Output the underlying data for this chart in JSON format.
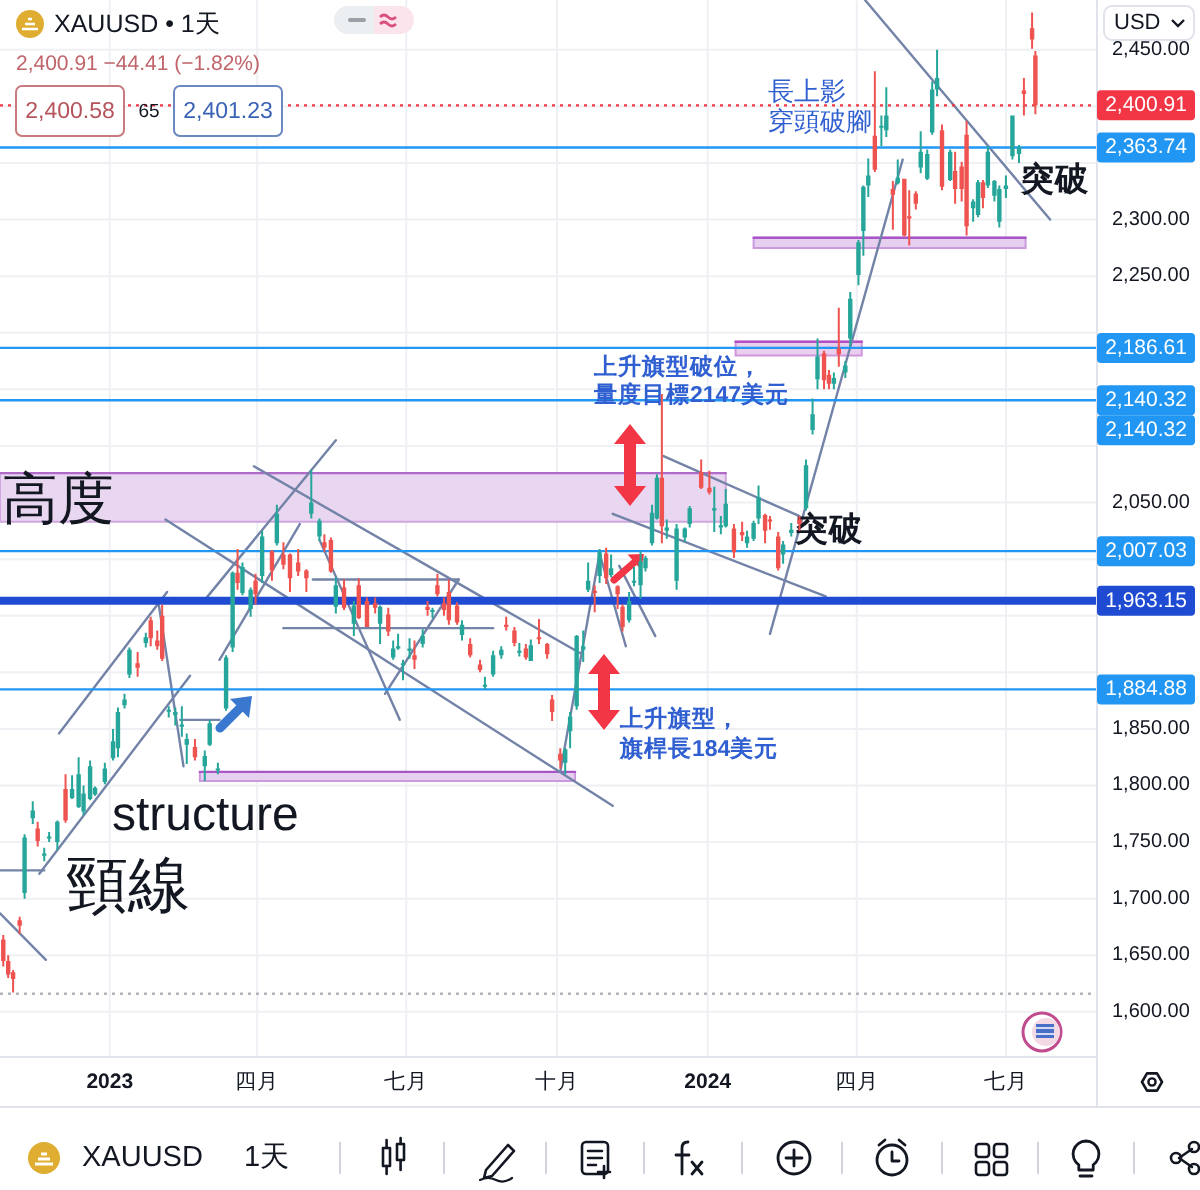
{
  "chart_data": {
    "type": "candlestick",
    "title": "XAUUSD • 1天",
    "subtitle": "2,400.91 −44.41 (−1.82%)",
    "x": [
      "2022-10-28",
      "2022-10-31",
      "2022-11-03",
      "2022-11-07",
      "2022-11-10",
      "2022-11-15",
      "2022-11-18",
      "2022-11-22",
      "2022-11-25",
      "2022-11-30",
      "2022-12-05",
      "2022-12-09",
      "2022-12-13",
      "2022-12-16",
      "2022-12-20",
      "2022-12-23",
      "2022-12-29",
      "2023-01-03",
      "2023-01-06",
      "2023-01-10",
      "2023-01-13",
      "2023-01-18",
      "2023-01-23",
      "2023-01-26",
      "2023-01-30",
      "2023-02-02",
      "2023-02-06",
      "2023-02-10",
      "2023-02-14",
      "2023-02-17",
      "2023-02-22",
      "2023-02-28",
      "2023-03-03",
      "2023-03-08",
      "2023-03-13",
      "2023-03-17",
      "2023-03-20",
      "2023-03-23",
      "2023-03-28",
      "2023-03-31",
      "2023-04-04",
      "2023-04-10",
      "2023-04-13",
      "2023-04-17",
      "2023-04-21",
      "2023-04-26",
      "2023-05-01",
      "2023-05-04",
      "2023-05-09",
      "2023-05-12",
      "2023-05-16",
      "2023-05-19",
      "2023-05-24",
      "2023-05-30",
      "2023-06-02",
      "2023-06-07",
      "2023-06-12",
      "2023-06-15",
      "2023-06-20",
      "2023-06-23",
      "2023-06-26",
      "2023-06-29",
      "2023-07-03",
      "2023-07-06",
      "2023-07-11",
      "2023-07-14",
      "2023-07-17",
      "2023-07-20",
      "2023-07-24",
      "2023-07-27",
      "2023-08-01",
      "2023-08-04",
      "2023-08-09",
      "2023-08-15",
      "2023-08-18",
      "2023-08-23",
      "2023-08-28",
      "2023-08-31",
      "2023-09-05",
      "2023-09-08",
      "2023-09-12",
      "2023-09-15",
      "2023-09-20",
      "2023-09-25",
      "2023-09-28",
      "2023-10-03",
      "2023-10-06",
      "2023-10-09",
      "2023-10-13",
      "2023-10-17",
      "2023-10-20",
      "2023-10-24",
      "2023-10-27",
      "2023-10-31",
      "2023-11-03",
      "2023-11-07",
      "2023-11-10",
      "2023-11-14",
      "2023-11-17",
      "2023-11-21",
      "2023-11-24",
      "2023-11-28",
      "2023-12-01",
      "2023-12-04",
      "2023-12-07",
      "2023-12-13",
      "2023-12-18",
      "2023-12-21",
      "2023-12-28",
      "2024-01-02",
      "2024-01-05",
      "2024-01-09",
      "2024-01-12",
      "2024-01-17",
      "2024-01-22",
      "2024-01-25",
      "2024-01-29",
      "2024-02-01",
      "2024-02-05",
      "2024-02-08",
      "2024-02-13",
      "2024-02-16",
      "2024-02-21",
      "2024-02-26",
      "2024-03-01",
      "2024-03-05",
      "2024-03-08",
      "2024-03-12",
      "2024-03-15",
      "2024-03-18",
      "2024-03-21",
      "2024-03-25",
      "2024-03-28",
      "2024-04-02",
      "2024-04-05",
      "2024-04-08",
      "2024-04-12",
      "2024-04-16",
      "2024-04-19",
      "2024-04-23",
      "2024-04-26",
      "2024-04-30",
      "2024-05-03",
      "2024-05-07",
      "2024-05-10",
      "2024-05-14",
      "2024-05-17",
      "2024-05-20",
      "2024-05-23",
      "2024-05-28",
      "2024-05-31",
      "2024-06-04",
      "2024-06-07",
      "2024-06-11",
      "2024-06-14",
      "2024-06-17",
      "2024-06-20",
      "2024-06-24",
      "2024-06-27",
      "2024-07-01",
      "2024-07-05",
      "2024-07-09",
      "2024-07-12",
      "2024-07-17",
      "2024-07-19"
    ],
    "ohlc": [
      [
        1664,
        1668,
        1640,
        1645
      ],
      [
        1645,
        1650,
        1630,
        1633
      ],
      [
        1635,
        1637,
        1617,
        1629
      ],
      [
        1681,
        1684,
        1669,
        1676
      ],
      [
        1705,
        1757,
        1700,
        1754
      ],
      [
        1771,
        1786,
        1766,
        1778
      ],
      [
        1762,
        1768,
        1746,
        1751
      ],
      [
        1738,
        1745,
        1733,
        1740
      ],
      [
        1755,
        1759,
        1750,
        1755
      ],
      [
        1750,
        1769,
        1743,
        1768
      ],
      [
        1797,
        1810,
        1767,
        1769
      ],
      [
        1789,
        1809,
        1788,
        1797
      ],
      [
        1781,
        1825,
        1780,
        1810
      ],
      [
        1777,
        1800,
        1774,
        1793
      ],
      [
        1788,
        1822,
        1787,
        1817
      ],
      [
        1792,
        1799,
        1791,
        1798
      ],
      [
        1803,
        1820,
        1801,
        1815
      ],
      [
        1824,
        1850,
        1822,
        1839
      ],
      [
        1833,
        1869,
        1825,
        1865
      ],
      [
        1871,
        1881,
        1868,
        1876
      ],
      [
        1898,
        1922,
        1895,
        1920
      ],
      [
        1908,
        1918,
        1896,
        1904
      ],
      [
        1926,
        1935,
        1922,
        1931
      ],
      [
        1946,
        1949,
        1923,
        1930
      ],
      [
        1928,
        1937,
        1920,
        1923
      ],
      [
        1950,
        1960,
        1910,
        1912
      ],
      [
        1866,
        1870,
        1860,
        1867
      ],
      [
        1862,
        1869,
        1853,
        1865
      ],
      [
        1852,
        1870,
        1843,
        1854
      ],
      [
        1836,
        1846,
        1819,
        1841
      ],
      [
        1834,
        1841,
        1822,
        1825
      ],
      [
        1817,
        1831,
        1804,
        1826
      ],
      [
        1836,
        1858,
        1835,
        1855
      ],
      [
        1814,
        1820,
        1810,
        1815
      ],
      [
        1868,
        1915,
        1866,
        1913
      ],
      [
        1922,
        1989,
        1918,
        1988
      ],
      [
        1988,
        2009,
        1973,
        1979
      ],
      [
        1970,
        1997,
        1968,
        1993
      ],
      [
        1956,
        1975,
        1949,
        1973
      ],
      [
        1981,
        1987,
        1960,
        1969
      ],
      [
        1985,
        2025,
        1979,
        2020
      ],
      [
        2007,
        2008,
        1981,
        1990
      ],
      [
        2014,
        2048,
        2012,
        2040
      ],
      [
        2004,
        2015,
        1991,
        1995
      ],
      [
        2004,
        2005,
        1971,
        1983
      ],
      [
        1997,
        2009,
        1985,
        1989
      ],
      [
        1990,
        1991,
        1971,
        1983
      ],
      [
        2040,
        2079,
        2036,
        2050
      ],
      [
        2020,
        2036,
        2016,
        2034
      ],
      [
        2015,
        2022,
        2006,
        2010
      ],
      [
        2017,
        2019,
        1988,
        1989
      ],
      [
        1958,
        1984,
        1952,
        1977
      ],
      [
        1975,
        1982,
        1955,
        1957
      ],
      [
        1943,
        1963,
        1932,
        1959
      ],
      [
        1977,
        1983,
        1947,
        1948
      ],
      [
        1963,
        1966,
        1940,
        1940
      ],
      [
        1961,
        1966,
        1952,
        1957
      ],
      [
        1943,
        1959,
        1925,
        1958
      ],
      [
        1951,
        1957,
        1932,
        1936
      ],
      [
        1913,
        1928,
        1911,
        1921
      ],
      [
        1921,
        1934,
        1920,
        1923
      ],
      [
        1907,
        1911,
        1893,
        1908
      ],
      [
        1919,
        1930,
        1912,
        1921
      ],
      [
        1915,
        1928,
        1903,
        1911
      ],
      [
        1925,
        1938,
        1922,
        1932
      ],
      [
        1958,
        1963,
        1950,
        1955
      ],
      [
        1955,
        1957,
        1948,
        1955
      ],
      [
        1977,
        1987,
        1967,
        1969
      ],
      [
        1961,
        1966,
        1950,
        1955
      ],
      [
        1971,
        1982,
        1942,
        1946
      ],
      [
        1959,
        1962,
        1942,
        1944
      ],
      [
        1933,
        1946,
        1928,
        1942
      ],
      [
        1925,
        1930,
        1913,
        1915
      ],
      [
        1907,
        1911,
        1900,
        1902
      ],
      [
        1889,
        1896,
        1885,
        1889
      ],
      [
        1898,
        1919,
        1896,
        1915
      ],
      [
        1915,
        1923,
        1912,
        1920
      ],
      [
        1942,
        1949,
        1937,
        1940
      ],
      [
        1937,
        1940,
        1923,
        1926
      ],
      [
        1919,
        1926,
        1914,
        1919
      ],
      [
        1921,
        1925,
        1911,
        1913
      ],
      [
        1910,
        1929,
        1910,
        1924
      ],
      [
        1931,
        1947,
        1925,
        1930
      ],
      [
        1925,
        1926,
        1912,
        1916
      ],
      [
        1876,
        1880,
        1857,
        1865
      ],
      [
        1828,
        1833,
        1815,
        1822
      ],
      [
        1820,
        1833,
        1810,
        1832
      ],
      [
        1848,
        1865,
        1833,
        1861
      ],
      [
        1870,
        1933,
        1867,
        1932
      ],
      [
        1920,
        1937,
        1909,
        1923
      ],
      [
        1973,
        1997,
        1971,
        1981
      ],
      [
        1972,
        1977,
        1953,
        1970
      ],
      [
        1985,
        2009,
        1979,
        2006
      ],
      [
        2005,
        2010,
        1978,
        1983
      ],
      [
        1986,
        2004,
        1984,
        1992
      ],
      [
        1976,
        1977,
        1956,
        1969
      ],
      [
        1958,
        1960,
        1936,
        1940
      ],
      [
        1946,
        1971,
        1944,
        1963
      ],
      [
        1981,
        1993,
        1976,
        1981
      ],
      [
        1977,
        2007,
        1965,
        1998
      ],
      [
        1992,
        2003,
        1989,
        2001
      ],
      [
        2014,
        2048,
        2012,
        2041
      ],
      [
        2036,
        2075,
        2035,
        2072
      ],
      [
        2072,
        2146,
        2014,
        2029
      ],
      [
        2025,
        2035,
        2018,
        2028
      ],
      [
        1981,
        2031,
        1973,
        2027
      ],
      [
        2019,
        2028,
        2015,
        2027
      ],
      [
        2031,
        2047,
        2028,
        2045
      ],
      [
        2077,
        2088,
        2062,
        2063
      ],
      [
        2063,
        2078,
        2057,
        2059
      ],
      [
        2043,
        2064,
        2024,
        2045
      ],
      [
        2028,
        2038,
        2022,
        2030
      ],
      [
        2029,
        2062,
        2028,
        2049
      ],
      [
        2027,
        2031,
        2001,
        2006
      ],
      [
        2024,
        2033,
        2016,
        2021
      ],
      [
        2014,
        2025,
        2010,
        2020
      ],
      [
        2018,
        2034,
        2016,
        2032
      ],
      [
        2036,
        2065,
        2031,
        2055
      ],
      [
        2039,
        2040,
        2014,
        2025
      ],
      [
        2035,
        2038,
        2026,
        2034
      ],
      [
        2020,
        2024,
        1990,
        1992
      ],
      [
        2004,
        2016,
        1996,
        2013
      ],
      [
        2023,
        2032,
        2020,
        2026
      ],
      [
        2035,
        2038,
        2025,
        2031
      ],
      [
        2045,
        2088,
        2043,
        2083
      ],
      [
        2114,
        2142,
        2110,
        2128
      ],
      [
        2159,
        2195,
        2150,
        2179
      ],
      [
        2182,
        2184,
        2150,
        2158
      ],
      [
        2163,
        2167,
        2150,
        2155
      ],
      [
        2155,
        2165,
        2150,
        2160
      ],
      [
        2186,
        2222,
        2170,
        2181
      ],
      [
        2165,
        2175,
        2160,
        2171
      ],
      [
        2195,
        2236,
        2188,
        2230
      ],
      [
        2251,
        2282,
        2242,
        2280
      ],
      [
        2290,
        2330,
        2268,
        2329
      ],
      [
        2330,
        2354,
        2320,
        2339
      ],
      [
        2374,
        2431,
        2342,
        2344
      ],
      [
        2383,
        2392,
        2365,
        2383
      ],
      [
        2379,
        2417,
        2373,
        2392
      ],
      [
        2327,
        2334,
        2291,
        2322
      ],
      [
        2332,
        2353,
        2331,
        2337
      ],
      [
        2336,
        2336,
        2285,
        2286
      ],
      [
        2303,
        2326,
        2277,
        2301
      ],
      [
        2323,
        2325,
        2309,
        2314
      ],
      [
        2346,
        2378,
        2341,
        2360
      ],
      [
        2336,
        2362,
        2335,
        2358
      ],
      [
        2377,
        2422,
        2375,
        2415
      ],
      [
        2415,
        2450,
        2409,
        2425
      ],
      [
        2379,
        2384,
        2326,
        2329
      ],
      [
        2335,
        2362,
        2334,
        2360
      ],
      [
        2343,
        2360,
        2314,
        2327
      ],
      [
        2347,
        2351,
        2316,
        2327
      ],
      [
        2375,
        2387,
        2286,
        2294
      ],
      [
        2310,
        2318,
        2298,
        2316
      ],
      [
        2304,
        2335,
        2302,
        2333
      ],
      [
        2333,
        2335,
        2310,
        2319
      ],
      [
        2330,
        2365,
        2328,
        2360
      ],
      [
        2321,
        2335,
        2316,
        2334
      ],
      [
        2298,
        2330,
        2293,
        2327
      ],
      [
        2327,
        2339,
        2319,
        2330
      ],
      [
        2356,
        2392,
        2353,
        2392
      ],
      [
        2358,
        2366,
        2350,
        2364
      ],
      [
        2414,
        2425,
        2392,
        2411
      ],
      [
        2469,
        2483,
        2451,
        2459
      ],
      [
        2445,
        2449,
        2393,
        2400.91
      ]
    ],
    "xlim": [
      "2022-10-26",
      "2024-08-25"
    ],
    "xticks": [
      {
        "value": "2023-01-01",
        "label": "2023"
      },
      {
        "value": "2023-04-01",
        "label": "四月"
      },
      {
        "value": "2023-07-01",
        "label": "七月"
      },
      {
        "value": "2023-10-01",
        "label": "十月"
      },
      {
        "value": "2024-01-01",
        "label": "2024"
      },
      {
        "value": "2024-04-01",
        "label": "四月"
      },
      {
        "value": "2024-07-01",
        "label": "七月"
      }
    ],
    "ylim": [
      1561,
      2494
    ],
    "yticks": [
      {
        "value": 1600,
        "label": "1,600.00"
      },
      {
        "value": 1650,
        "label": "1,650.00"
      },
      {
        "value": 1700,
        "label": "1,700.00"
      },
      {
        "value": 1750,
        "label": "1,750.00"
      },
      {
        "value": 1800,
        "label": "1,800.00"
      },
      {
        "value": 1850,
        "label": "1,850.00"
      },
      {
        "value": 1900,
        "label": null
      },
      {
        "value": 1950,
        "label": null
      },
      {
        "value": 2000,
        "label": null
      },
      {
        "value": 2050,
        "label": "2,050.00"
      },
      {
        "value": 2100,
        "label": null
      },
      {
        "value": 2150,
        "label": null
      },
      {
        "value": 2200,
        "label": null
      },
      {
        "value": 2250,
        "label": "2,250.00"
      },
      {
        "value": 2300,
        "label": "2,300.00"
      },
      {
        "value": 2350,
        "label": null
      },
      {
        "value": 2400,
        "label": null
      },
      {
        "value": 2450,
        "label": "2,450.00"
      }
    ],
    "grid": true,
    "series": [
      {
        "type": "line",
        "x": [
          "2022-10-26",
          "2024-01-12"
        ],
        "values": [
          2076,
          2076
        ],
        "lower": [
          2033,
          2033
        ],
        "upper": [
          2076,
          2076
        ],
        "color": "#b06bc9"
      },
      {
        "type": "line",
        "x": [
          "2023-02-25",
          "2023-10-12"
        ],
        "values": [
          1812,
          1812
        ],
        "lower": [
          1804,
          1804
        ],
        "upper": [
          1812,
          1812
        ],
        "color": "#a855c8"
      },
      {
        "type": "line",
        "x": [
          "2024-01-18",
          "2024-04-04"
        ],
        "values": [
          2192,
          2192
        ],
        "lower": [
          2180,
          2180
        ],
        "upper": [
          2192,
          2192
        ],
        "color": "#b24fc4"
      },
      {
        "type": "line",
        "x": [
          "2024-01-29",
          "2024-07-13"
        ],
        "values": [
          2284,
          2284
        ],
        "lower": [
          2275,
          2275
        ],
        "upper": [
          2284,
          2284
        ],
        "color": "#a855c8"
      },
      {
        "type": "line",
        "x": [
          "2022-10-26",
          "2022-11-23"
        ],
        "values": [
          1687,
          1646
        ],
        "color": "#7383a8"
      },
      {
        "type": "line",
        "x": [
          "2022-10-26",
          "2022-11-22"
        ],
        "values": [
          1725,
          1725
        ],
        "color": "#7383a8"
      },
      {
        "type": "line",
        "x": [
          "2022-11-19",
          "2023-02-19"
        ],
        "values": [
          1722,
          1897
        ],
        "color": "#7383a8"
      },
      {
        "type": "line",
        "x": [
          "2022-12-01",
          "2023-02-05"
        ],
        "values": [
          1846,
          1971
        ],
        "color": "#7383a8"
      },
      {
        "type": "line",
        "x": [
          "2023-01-31",
          "2023-02-15"
        ],
        "values": [
          1959,
          1817
        ],
        "color": "#7383a8"
      },
      {
        "type": "line",
        "x": [
          "2023-02-13",
          "2023-03-09"
        ],
        "values": [
          1858,
          1858
        ],
        "color": "#7383a8"
      },
      {
        "type": "line",
        "x": [
          "2023-02-28",
          "2023-05-19"
        ],
        "values": [
          1964,
          2105
        ],
        "color": "#7383a8"
      },
      {
        "type": "line",
        "x": [
          "2023-03-09",
          "2023-04-27"
        ],
        "values": [
          1911,
          2031
        ],
        "color": "#7383a8"
      },
      {
        "type": "line",
        "x": [
          "2023-03-30",
          "2023-10-15"
        ],
        "values": [
          2082,
          1917
        ],
        "color": "#7383a8"
      },
      {
        "type": "line",
        "x": [
          "2023-02-04",
          "2023-11-04"
        ],
        "values": [
          2035,
          1782
        ],
        "color": "#7383a8"
      },
      {
        "type": "line",
        "x": [
          "2023-05-05",
          "2023-08-02"
        ],
        "values": [
          1982,
          1982
        ],
        "color": "#7383a8"
      },
      {
        "type": "line",
        "x": [
          "2023-04-17",
          "2023-08-23"
        ],
        "values": [
          1939,
          1939
        ],
        "color": "#7383a8"
      },
      {
        "type": "line",
        "x": [
          "2023-05-09",
          "2023-06-27"
        ],
        "values": [
          2017,
          1858
        ],
        "color": "#7383a8"
      },
      {
        "type": "line",
        "x": [
          "2023-06-18",
          "2023-08-02"
        ],
        "values": [
          1881,
          1982
        ],
        "color": "#7383a8"
      },
      {
        "type": "line",
        "x": [
          "2023-10-03",
          "2023-10-27"
        ],
        "values": [
          1812,
          2005
        ],
        "color": "#7383a8"
      },
      {
        "type": "line",
        "x": [
          "2023-10-27",
          "2023-11-12"
        ],
        "values": [
          2005,
          1923
        ],
        "color": "#7383a8"
      },
      {
        "type": "line",
        "x": [
          "2023-11-08",
          "2023-11-30"
        ],
        "values": [
          1994,
          1932
        ],
        "color": "#7383a8"
      },
      {
        "type": "line",
        "x": [
          "2023-12-05",
          "2024-02-26"
        ],
        "values": [
          2091,
          2038
        ],
        "color": "#7383a8"
      },
      {
        "type": "line",
        "x": [
          "2023-11-04",
          "2024-03-13"
        ],
        "values": [
          2040,
          1967
        ],
        "color": "#7383a8"
      },
      {
        "type": "line",
        "x": [
          "2024-02-08",
          "2024-04-29"
        ],
        "values": [
          1934,
          2353
        ],
        "color": "#7383a8"
      },
      {
        "type": "line",
        "x": [
          "2024-04-06",
          "2024-07-28"
        ],
        "values": [
          2494,
          2300
        ],
        "color": "#7383a8"
      }
    ],
    "ref_lines": [
      {
        "axis": "y",
        "value": 2400.91,
        "label": "2,400.91",
        "color": "#f23645",
        "line_style": "dotted"
      },
      {
        "axis": "y",
        "value": 2363.74,
        "label": "2,363.74",
        "color": "#2196f3"
      },
      {
        "axis": "y",
        "value": 2186.61,
        "label": "2,186.61",
        "color": "#2196f3"
      },
      {
        "axis": "y",
        "value": 2140.32,
        "label": "2,140.32",
        "color": "#2196f3"
      },
      {
        "axis": "y",
        "value": 2007.03,
        "label": "2,007.03",
        "color": "#2196f3"
      },
      {
        "axis": "y",
        "value": 1963.15,
        "label": "1,963.15",
        "color": "#1e4bd2"
      },
      {
        "axis": "y",
        "value": 1884.88,
        "label": "1,884.88",
        "color": "#2196f3"
      },
      {
        "axis": "y",
        "value": 1616,
        "color": "#b2b5be",
        "line_style": "dotted"
      }
    ],
    "annotations": [
      "USD",
      "2,400.58",
      "65",
      "2,401.23",
      "XAUUSD",
      "1天",
      "2,140.32",
      "structure",
      "頸線",
      "上升旗型破位，量度目標2147美元",
      "上升旗型，旗桿長184美元",
      "長上影",
      "穿頭破腳",
      {
        "text": "高度",
        "x": "2022-10-27",
        "y": 2054
      },
      {
        "text": "突破",
        "x": "2024-07-10",
        "y": 2335
      },
      {
        "text": "突破",
        "x": "2024-02-23",
        "y": 2026
      }
    ]
  }
}
